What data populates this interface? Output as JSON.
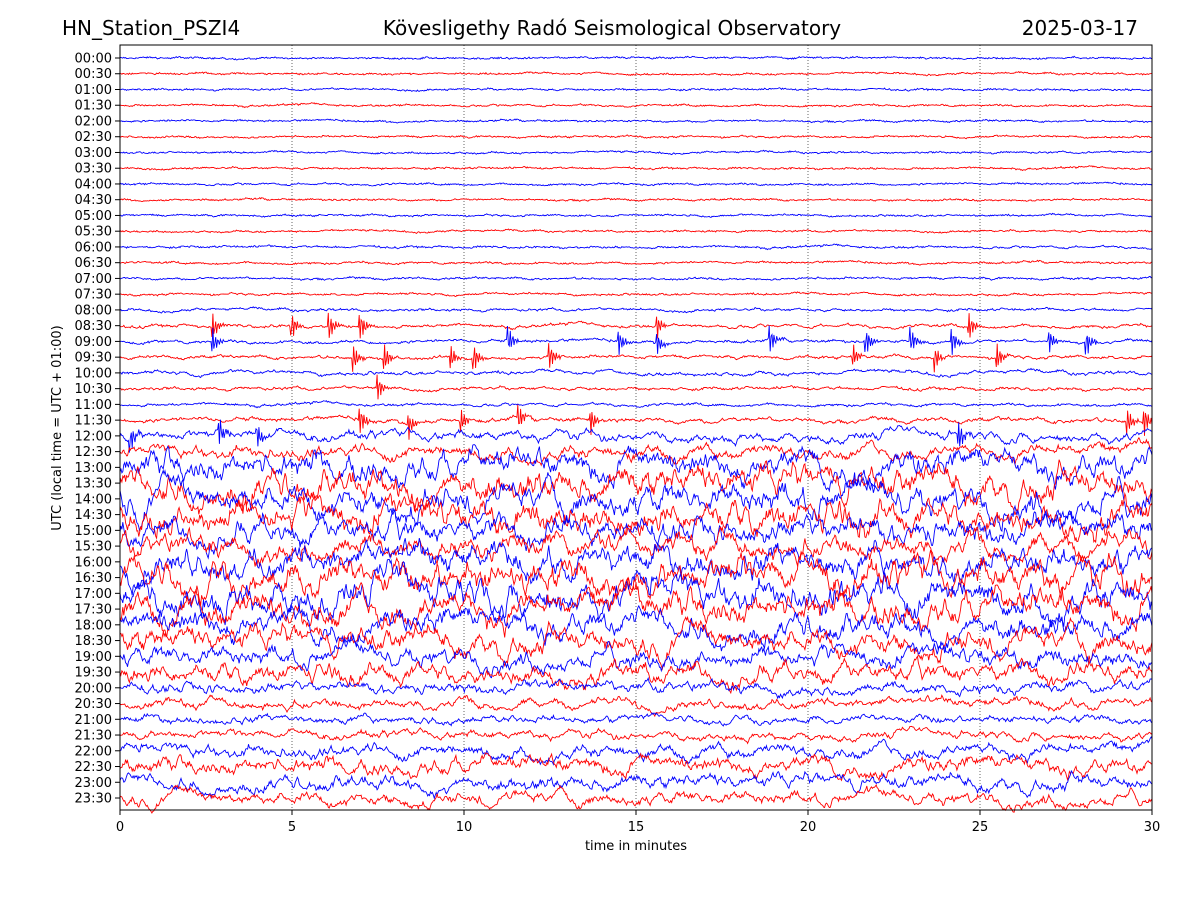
{
  "header": {
    "station": "HN_Station_PSZI4",
    "observatory": "Kövesligethy Radó Seismological Observatory",
    "date": "2025-03-17"
  },
  "chart_data": {
    "type": "line",
    "title": "Kövesligethy Radó Seismological Observatory",
    "xlabel": "time in minutes",
    "ylabel": "UTC (local time = UTC + 01:00)",
    "xlim": [
      0,
      30
    ],
    "xticks": [
      "0",
      "5",
      "10",
      "15",
      "20",
      "25",
      "30"
    ],
    "grid": "vertical dotted at every 5 minutes",
    "colors": [
      "#0000ff",
      "#ff0000"
    ],
    "rows": [
      "00:00",
      "00:30",
      "01:00",
      "01:30",
      "02:00",
      "02:30",
      "03:00",
      "03:30",
      "04:00",
      "04:30",
      "05:00",
      "05:30",
      "06:00",
      "06:30",
      "07:00",
      "07:30",
      "08:00",
      "08:30",
      "09:00",
      "09:30",
      "10:00",
      "10:30",
      "11:00",
      "11:30",
      "12:00",
      "12:30",
      "13:00",
      "13:30",
      "14:00",
      "14:30",
      "15:00",
      "15:30",
      "16:00",
      "16:30",
      "17:00",
      "17:30",
      "18:00",
      "18:30",
      "19:00",
      "19:30",
      "20:00",
      "20:30",
      "21:00",
      "21:30",
      "22:00",
      "22:30",
      "23:00",
      "23:30"
    ],
    "activity_level": [
      0.05,
      0.05,
      0.05,
      0.05,
      0.05,
      0.05,
      0.05,
      0.05,
      0.05,
      0.05,
      0.05,
      0.05,
      0.06,
      0.06,
      0.06,
      0.06,
      0.08,
      0.1,
      0.1,
      0.1,
      0.12,
      0.1,
      0.08,
      0.15,
      0.3,
      0.4,
      0.85,
      0.95,
      0.9,
      0.95,
      0.8,
      0.7,
      0.9,
      1.0,
      1.0,
      0.9,
      0.8,
      0.75,
      0.6,
      0.6,
      0.35,
      0.3,
      0.25,
      0.25,
      0.4,
      0.5,
      0.45,
      0.4
    ],
    "events_minutes": {
      "17": [
        2.7,
        5.0,
        6.1,
        7.0,
        15.6,
        24.7
      ],
      "18": [
        2.7,
        11.3,
        14.5,
        15.6,
        18.9,
        21.7,
        23.0,
        24.2,
        27.0,
        28.1
      ],
      "19": [
        6.8,
        7.7,
        9.6,
        10.3,
        12.5,
        21.3,
        23.7,
        25.5
      ],
      "21": [
        7.5
      ],
      "23": [
        7.0,
        8.4,
        9.9,
        11.6,
        13.7,
        29.3,
        29.8
      ],
      "24": [
        0.3,
        2.9,
        4.0,
        24.4
      ]
    }
  }
}
